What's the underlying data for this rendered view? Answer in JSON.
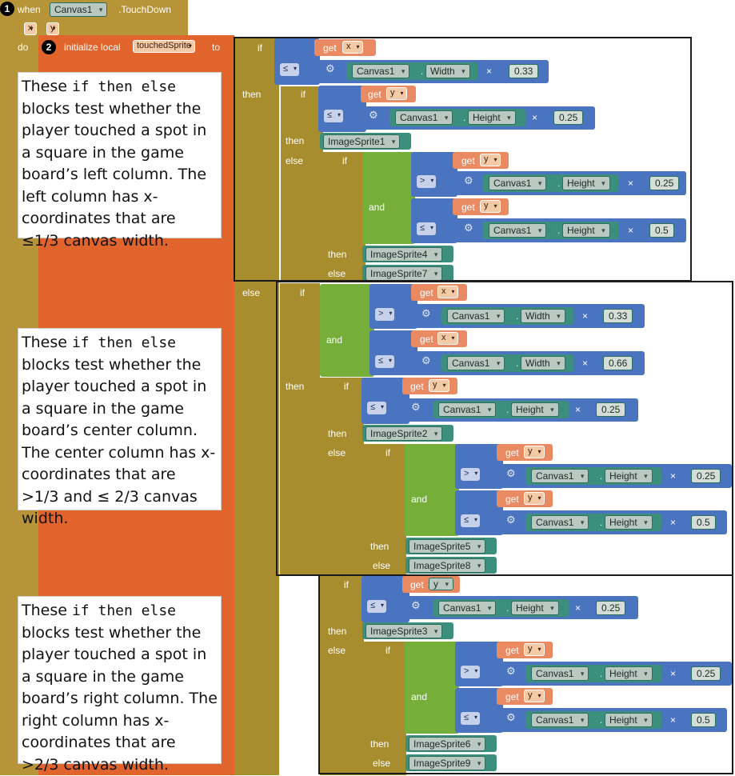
{
  "event": {
    "marker1": "1",
    "when_label": "when",
    "component": "Canvas1",
    "event_name": ".TouchDown",
    "param_x": "x",
    "param_y": "y",
    "do_label": "do"
  },
  "init": {
    "marker2": "2",
    "label": "initialize local",
    "var_name": "touchedSprite",
    "to_label": "to"
  },
  "keywords": {
    "if": "if",
    "then": "then",
    "else": "else",
    "and": "and",
    "get": "get",
    "times": "×",
    "dot": "."
  },
  "ops": {
    "le": "≤",
    "gt": ">"
  },
  "props": {
    "width": "Width",
    "height": "Height"
  },
  "constants": {
    "c033": "0.33",
    "c066": "0.66",
    "c025": "0.25",
    "c05": "0.5"
  },
  "sprites": {
    "s1": "ImageSprite1",
    "s2": "ImageSprite2",
    "s3": "ImageSprite3",
    "s4": "ImageSprite4",
    "s5": "ImageSprite5",
    "s6": "ImageSprite6",
    "s7": "ImageSprite7",
    "s8": "ImageSprite8",
    "s9": "ImageSprite9"
  },
  "notes": [
    {
      "p1": "These ",
      "code1": "if then else",
      "p2": " blocks test whether the player touched a spot in a square in the game board’s left column. The left column has x-coordinates that are ≤1/3 canvas width."
    },
    {
      "p1": "These ",
      "code1": "if then else",
      "p2": " blocks test whether the player touched a spot in a square in the game board’s center column. The center column has x-coordinates that are >1/3 and ≤ 2/3 canvas width."
    },
    {
      "p1": "These ",
      "code1": "if then else",
      "p2": " blocks test whether the player touched a spot in a square in the game board’s right column. The right column has x-coordinates that are >2/3 canvas width."
    }
  ]
}
